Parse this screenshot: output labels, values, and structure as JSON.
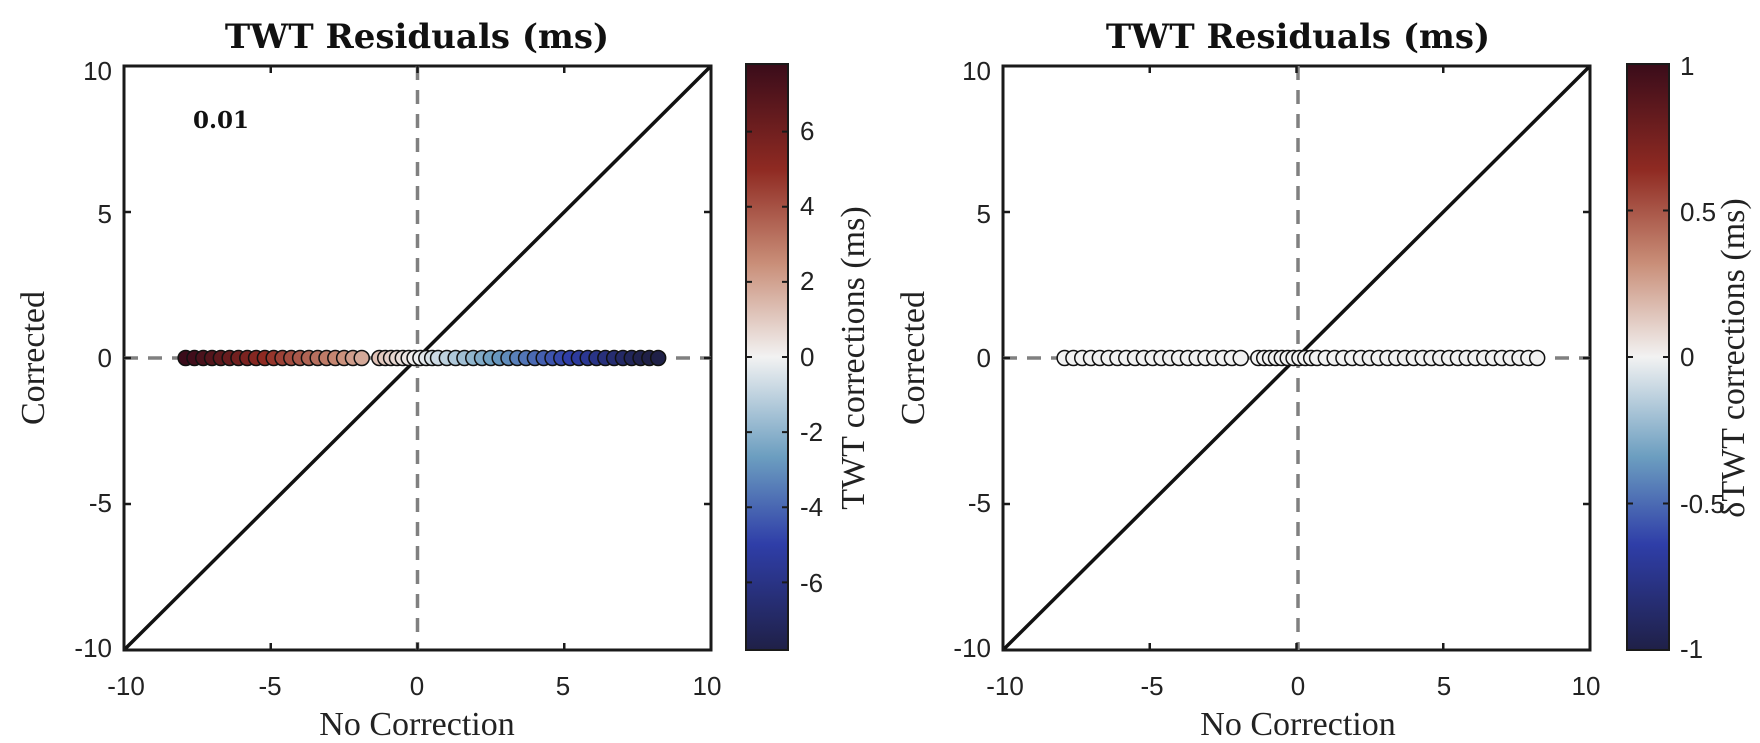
{
  "chart_data": [
    {
      "type": "scatter",
      "title": "TWT Residuals (ms)",
      "xlabel": "No Correction",
      "ylabel": "Corrected",
      "xlim": [
        -10,
        10
      ],
      "ylim": [
        -10,
        10
      ],
      "xticks": [
        "-10",
        "-5",
        "0",
        "5",
        "10"
      ],
      "yticks": [
        "-10",
        "-5",
        "0",
        "5",
        "10"
      ],
      "annotation": "0.01",
      "reference_lines": [
        "y = x (solid black)",
        "x = 0 (dashed gray)",
        "y = 0 (dashed gray)"
      ],
      "colorbar": {
        "label": "TWT corrections (ms)",
        "range": [
          -7.8,
          7.8
        ],
        "ticks": [
          "6",
          "4",
          "2",
          "0",
          "-2",
          "-4",
          "-6"
        ],
        "tick_values": [
          6,
          4,
          2,
          0,
          -2,
          -4,
          -6
        ],
        "colormap": [
          "#1f2047",
          "#2f3ea8",
          "#6c9ec0",
          "#f2f2f2",
          "#c98e78",
          "#8f2a22",
          "#3a0c1a"
        ]
      },
      "points": {
        "x": [
          -7.9,
          -7.6,
          -7.3,
          -7.0,
          -6.7,
          -6.4,
          -6.1,
          -5.8,
          -5.5,
          -5.2,
          -4.9,
          -4.6,
          -4.3,
          -4.0,
          -3.7,
          -3.4,
          -3.1,
          -2.8,
          -2.5,
          -2.2,
          -1.9,
          -1.3,
          -1.1,
          -0.9,
          -0.7,
          -0.5,
          -0.3,
          -0.1,
          0.1,
          0.3,
          0.5,
          0.7,
          1.0,
          1.3,
          1.6,
          1.9,
          2.2,
          2.5,
          2.8,
          3.1,
          3.4,
          3.7,
          4.0,
          4.3,
          4.6,
          4.9,
          5.2,
          5.5,
          5.8,
          6.1,
          6.4,
          6.7,
          7.0,
          7.3,
          7.6,
          7.9,
          8.2
        ],
        "y": [
          0,
          0,
          0,
          0,
          0,
          0,
          0,
          0,
          0,
          0,
          0,
          0,
          0,
          0,
          0,
          0,
          0,
          0,
          0,
          0,
          0,
          0,
          0,
          0,
          0,
          0,
          0,
          0,
          0,
          0,
          0,
          0,
          0,
          0,
          0,
          0,
          0,
          0,
          0,
          0,
          0,
          0,
          0,
          0,
          0,
          0,
          0,
          0,
          0,
          0,
          0,
          0,
          0,
          0,
          0,
          0,
          0
        ],
        "color_value": "-x"
      }
    },
    {
      "type": "scatter",
      "title": "TWT Residuals (ms)",
      "xlabel": "No Correction",
      "ylabel": "Corrected",
      "xlim": [
        -10,
        10
      ],
      "ylim": [
        -10,
        10
      ],
      "xticks": [
        "-10",
        "-5",
        "0",
        "5",
        "10"
      ],
      "yticks": [
        "-10",
        "-5",
        "0",
        "5",
        "10"
      ],
      "reference_lines": [
        "y = x (solid black)",
        "x = 0 (dashed gray)",
        "y = 0 (dashed gray)"
      ],
      "colorbar": {
        "label": "δTWT corrections (ms)",
        "range": [
          -1,
          1
        ],
        "ticks": [
          "1",
          "0.5",
          "0",
          "-0.5",
          "-1"
        ],
        "tick_values": [
          1,
          0.5,
          0,
          -0.5,
          -1
        ],
        "colormap": [
          "#1f2047",
          "#2f3ea8",
          "#6c9ec0",
          "#f2f2f2",
          "#c98e78",
          "#8f2a22",
          "#3a0c1a"
        ]
      },
      "points": {
        "x": [
          -7.9,
          -7.6,
          -7.3,
          -7.0,
          -6.7,
          -6.4,
          -6.1,
          -5.8,
          -5.5,
          -5.2,
          -4.9,
          -4.6,
          -4.3,
          -4.0,
          -3.7,
          -3.4,
          -3.1,
          -2.8,
          -2.5,
          -2.2,
          -1.9,
          -1.3,
          -1.1,
          -0.9,
          -0.7,
          -0.5,
          -0.3,
          -0.1,
          0.1,
          0.3,
          0.5,
          0.7,
          1.0,
          1.3,
          1.6,
          1.9,
          2.2,
          2.5,
          2.8,
          3.1,
          3.4,
          3.7,
          4.0,
          4.3,
          4.6,
          4.9,
          5.2,
          5.5,
          5.8,
          6.1,
          6.4,
          6.7,
          7.0,
          7.3,
          7.6,
          7.9,
          8.2
        ],
        "y": [
          0,
          0,
          0,
          0,
          0,
          0,
          0,
          0,
          0,
          0,
          0,
          0,
          0,
          0,
          0,
          0,
          0,
          0,
          0,
          0,
          0,
          0,
          0,
          0,
          0,
          0,
          0,
          0,
          0,
          0,
          0,
          0,
          0,
          0,
          0,
          0,
          0,
          0,
          0,
          0,
          0,
          0,
          0,
          0,
          0,
          0,
          0,
          0,
          0,
          0,
          0,
          0,
          0,
          0,
          0,
          0,
          0
        ],
        "color_value": 0
      }
    }
  ]
}
